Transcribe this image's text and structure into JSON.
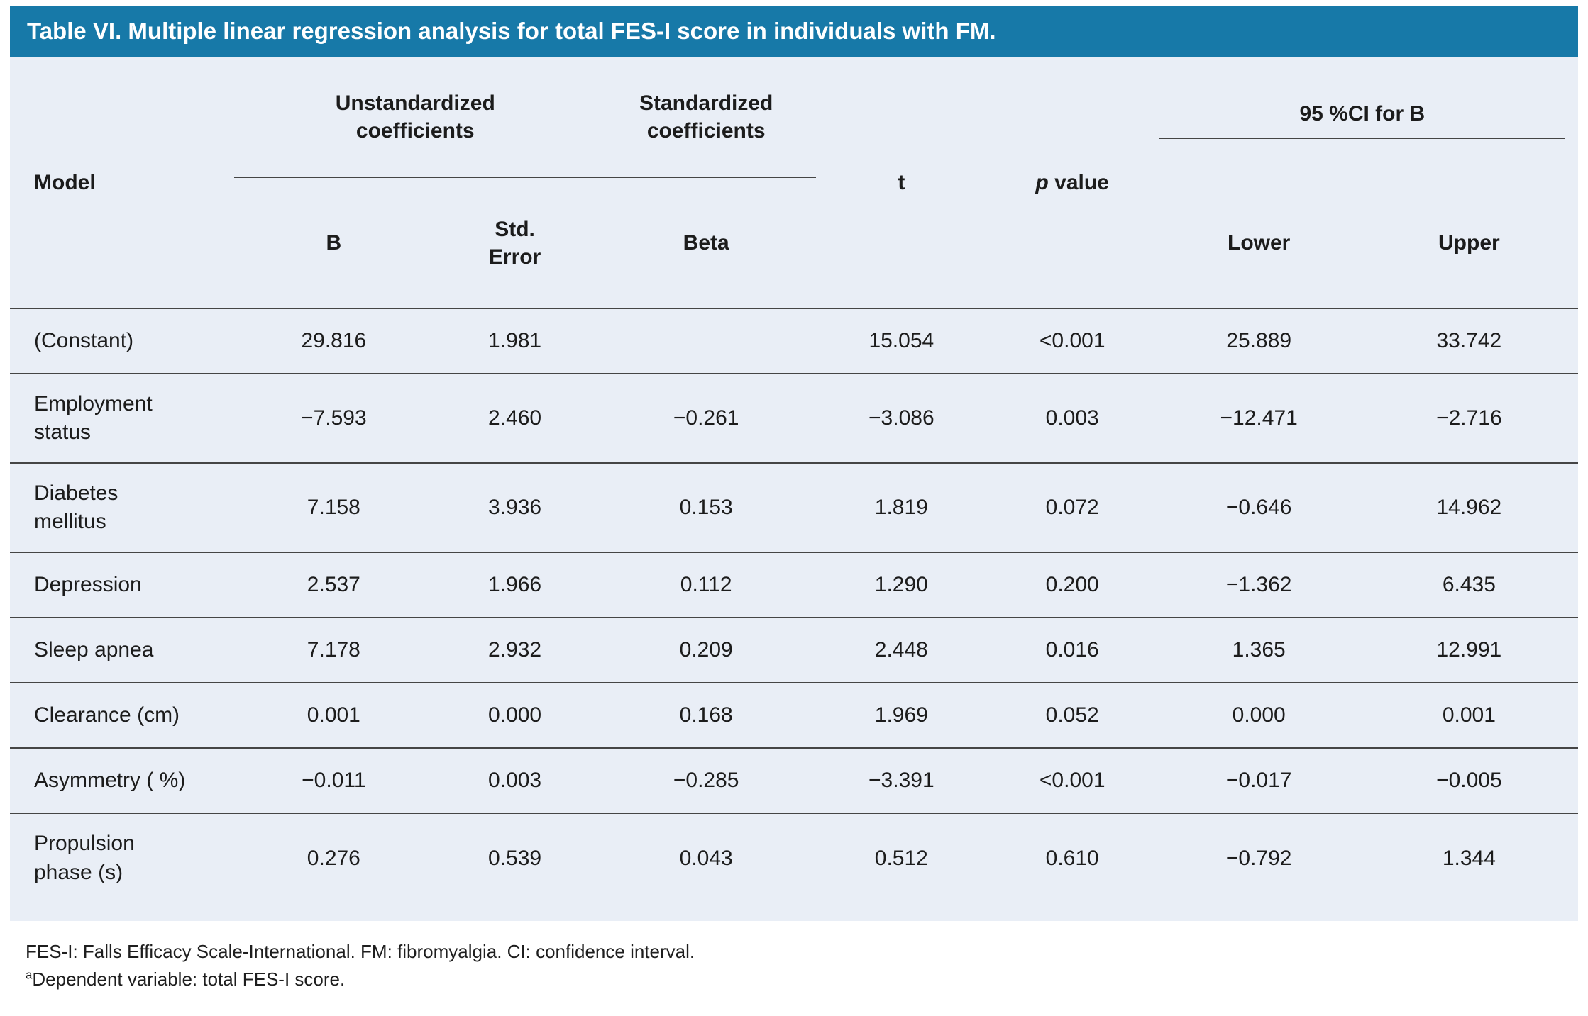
{
  "title": "Table VI. Multiple linear regression analysis for total FES-I score in individuals with FM.",
  "header": {
    "model": "Model",
    "unstd": "Unstandardized coefficients",
    "std": "Standardized coefficients",
    "t": "t",
    "p_italic": "p",
    "p_rest": " value",
    "ci": "95 %CI for B",
    "b": "B",
    "std_error": "Std. Error",
    "beta": "Beta",
    "lower": "Lower",
    "upper": "Upper"
  },
  "rows": [
    {
      "model": "(Constant)",
      "b": "29.816",
      "se": "1.981",
      "beta": "",
      "t": "15.054",
      "p": "<0.001",
      "lower": "25.889",
      "upper": "33.742"
    },
    {
      "model": "Employment status",
      "b": "−7.593",
      "se": "2.460",
      "beta": "−0.261",
      "t": "−3.086",
      "p": "0.003",
      "lower": "−12.471",
      "upper": "−2.716"
    },
    {
      "model": "Diabetes mellitus",
      "b": "7.158",
      "se": "3.936",
      "beta": "0.153",
      "t": "1.819",
      "p": "0.072",
      "lower": "−0.646",
      "upper": "14.962"
    },
    {
      "model": "Depression",
      "b": "2.537",
      "se": "1.966",
      "beta": "0.112",
      "t": "1.290",
      "p": "0.200",
      "lower": "−1.362",
      "upper": "6.435"
    },
    {
      "model": "Sleep apnea",
      "b": "7.178",
      "se": "2.932",
      "beta": "0.209",
      "t": "2.448",
      "p": "0.016",
      "lower": "1.365",
      "upper": "12.991"
    },
    {
      "model": "Clearance (cm)",
      "b": "0.001",
      "se": "0.000",
      "beta": "0.168",
      "t": "1.969",
      "p": "0.052",
      "lower": "0.000",
      "upper": "0.001"
    },
    {
      "model": "Asymmetry ( %)",
      "b": "−0.011",
      "se": "0.003",
      "beta": "−0.285",
      "t": "−3.391",
      "p": "<0.001",
      "lower": "−0.017",
      "upper": "−0.005"
    },
    {
      "model": "Propulsion phase (s)",
      "b": "0.276",
      "se": "0.539",
      "beta": "0.043",
      "t": "0.512",
      "p": "0.610",
      "lower": "−0.792",
      "upper": "1.344"
    }
  ],
  "footnotes": {
    "line1": "FES-I: Falls Efficacy Scale-International. FM: fibromyalgia. CI: confidence interval.",
    "line2_sup": "a",
    "line2_text": "Dependent variable: total FES-I score."
  },
  "colors": {
    "banner": "#1779a8",
    "table_bg": "#e9eef6",
    "rule": "#454545",
    "text": "#1c1c1c"
  }
}
